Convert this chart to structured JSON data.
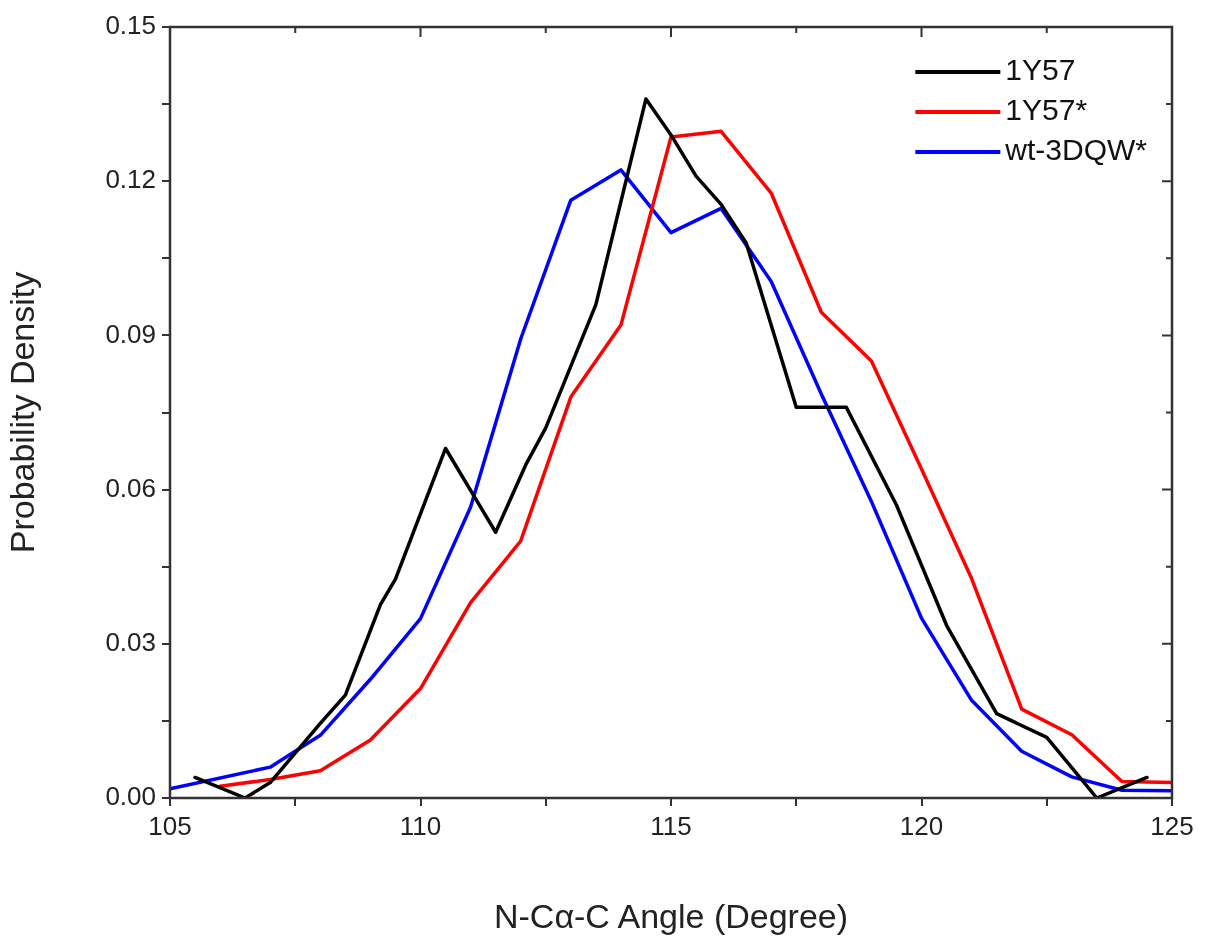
{
  "chart_data": {
    "type": "line",
    "xlabel": "N-Cα-C Angle (Degree)",
    "ylabel": "Probability Density",
    "xlim": [
      105,
      125
    ],
    "ylim": [
      0,
      0.15
    ],
    "xticks": [
      105,
      {
        "value": 107.5,
        "label": null
      },
      110,
      {
        "value": 112.5,
        "label": null
      },
      115,
      {
        "value": 117.5,
        "label": null
      },
      120,
      {
        "value": 122.5,
        "label": null
      },
      125
    ],
    "yticks": [
      {
        "value": 0,
        "label": "0.00"
      },
      {
        "value": 0.015,
        "label": null
      },
      {
        "value": 0.03,
        "label": "0.03"
      },
      {
        "value": 0.045,
        "label": null
      },
      {
        "value": 0.06,
        "label": "0.06"
      },
      {
        "value": 0.075,
        "label": null
      },
      {
        "value": 0.09,
        "label": "0.09"
      },
      {
        "value": 0.105,
        "label": null
      },
      {
        "value": 0.12,
        "label": "0.12"
      },
      {
        "value": 0.135,
        "label": null
      },
      {
        "value": 0.15,
        "label": "0.15"
      }
    ],
    "grid": false,
    "legend": "top right",
    "marker": "none",
    "line_style": "solid",
    "series": [
      {
        "name": "1Y57",
        "color": "#000000",
        "x": [
          105.5,
          106.5,
          107,
          108,
          108.5,
          109.2,
          109.5,
          110.5,
          111.5,
          112.1,
          112.5,
          113.5,
          114.5,
          115,
          115.5,
          116,
          116.5,
          117.5,
          118.5,
          119.5,
          120.5,
          121.5,
          122.5,
          123.5,
          124.5
        ],
        "values": [
          0.004,
          0,
          0.003,
          0.0145,
          0.02,
          0.0376,
          0.0426,
          0.068,
          0.0517,
          0.0648,
          0.072,
          0.096,
          0.136,
          0.129,
          0.121,
          0.1155,
          0.108,
          0.076,
          0.076,
          0.057,
          0.0336,
          0.0164,
          0.0118,
          0,
          0.004
        ]
      },
      {
        "name": "1Y57*",
        "color": "#ff0000",
        "x": [
          106,
          107,
          108,
          109,
          110,
          111,
          112,
          113,
          114,
          115,
          116,
          117,
          118,
          119,
          120,
          121,
          122,
          123,
          124,
          125
        ],
        "values": [
          0.0023,
          0.0036,
          0.0053,
          0.0113,
          0.0213,
          0.038,
          0.05,
          0.078,
          0.092,
          0.1286,
          0.1297,
          0.1177,
          0.0945,
          0.085,
          0.064,
          0.0427,
          0.0173,
          0.0123,
          0.0032,
          0.003
        ]
      },
      {
        "name": "wt-3DQW*",
        "color": "#0000ff",
        "x": [
          105,
          107,
          108,
          109,
          110,
          111,
          112,
          113,
          114,
          115,
          116,
          117,
          118,
          119,
          120,
          121,
          122,
          123,
          124,
          125
        ],
        "values": [
          0.0018,
          0.006,
          0.0122,
          0.0231,
          0.0349,
          0.0566,
          0.0893,
          0.1163,
          0.1222,
          0.11,
          0.1147,
          0.1005,
          0.0786,
          0.0577,
          0.035,
          0.019,
          0.0091,
          0.0041,
          0.0015,
          0.0014
        ]
      }
    ]
  }
}
